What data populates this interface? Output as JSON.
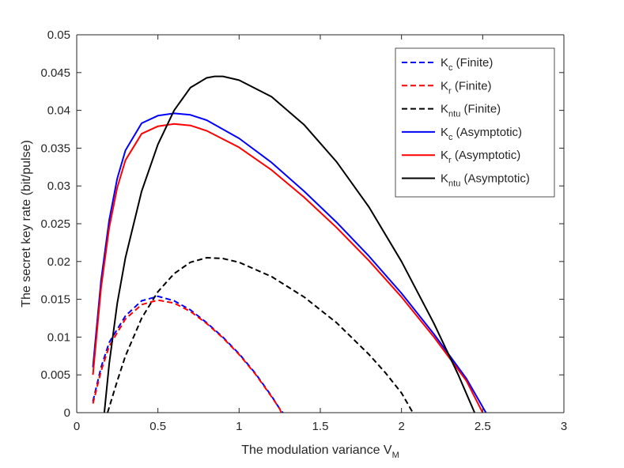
{
  "chart_data": {
    "type": "line",
    "title": "",
    "xlabel": "The modulation variance V",
    "xlabel_sub": "M",
    "ylabel": "The secret key rate (bit/pulse)",
    "xlim": [
      0,
      3
    ],
    "ylim": [
      0,
      0.05
    ],
    "xticks": [
      0,
      0.5,
      1,
      1.5,
      2,
      2.5,
      3
    ],
    "xtick_labels": [
      "0",
      "0.5",
      "1",
      "1.5",
      "2",
      "2.5",
      "3"
    ],
    "yticks": [
      0,
      0.005,
      0.01,
      0.015,
      0.02,
      0.025,
      0.03,
      0.035,
      0.04,
      0.045,
      0.05
    ],
    "ytick_labels": [
      "0",
      "0.005",
      "0.01",
      "0.015",
      "0.02",
      "0.025",
      "0.03",
      "0.035",
      "0.04",
      "0.045",
      "0.05"
    ],
    "grid": false,
    "legend_position": "top-right",
    "series": [
      {
        "name": "K",
        "sub": "c",
        "suffix": " (Finite)",
        "color": "#0000ff",
        "dashed": true,
        "points": [
          [
            0.1,
            0.0015
          ],
          [
            0.15,
            0.006
          ],
          [
            0.2,
            0.0093
          ],
          [
            0.3,
            0.0128
          ],
          [
            0.4,
            0.0148
          ],
          [
            0.5,
            0.0154
          ],
          [
            0.6,
            0.0148
          ],
          [
            0.7,
            0.0136
          ],
          [
            0.8,
            0.0119
          ],
          [
            0.9,
            0.01
          ],
          [
            1.0,
            0.0078
          ],
          [
            1.1,
            0.0052
          ],
          [
            1.2,
            0.0022
          ],
          [
            1.25,
            0.0005
          ],
          [
            1.27,
            0
          ]
        ]
      },
      {
        "name": "K",
        "sub": "r",
        "suffix": " (Finite)",
        "color": "#ff0000",
        "dashed": true,
        "points": [
          [
            0.1,
            0.0012
          ],
          [
            0.15,
            0.0055
          ],
          [
            0.2,
            0.0088
          ],
          [
            0.3,
            0.0124
          ],
          [
            0.4,
            0.0143
          ],
          [
            0.5,
            0.0149
          ],
          [
            0.6,
            0.0145
          ],
          [
            0.7,
            0.0134
          ],
          [
            0.8,
            0.0118
          ],
          [
            0.9,
            0.0099
          ],
          [
            1.0,
            0.0077
          ],
          [
            1.1,
            0.0051
          ],
          [
            1.2,
            0.0021
          ],
          [
            1.25,
            0.0005
          ],
          [
            1.26,
            0
          ]
        ]
      },
      {
        "name": "K",
        "sub": "ntu",
        "suffix": " (Finite)",
        "color": "#000000",
        "dashed": true,
        "points": [
          [
            0.19,
            0
          ],
          [
            0.25,
            0.0042
          ],
          [
            0.3,
            0.0075
          ],
          [
            0.4,
            0.0125
          ],
          [
            0.5,
            0.016
          ],
          [
            0.6,
            0.0184
          ],
          [
            0.7,
            0.0199
          ],
          [
            0.8,
            0.0205
          ],
          [
            0.9,
            0.0204
          ],
          [
            1.0,
            0.0199
          ],
          [
            1.2,
            0.018
          ],
          [
            1.4,
            0.0153
          ],
          [
            1.6,
            0.0119
          ],
          [
            1.8,
            0.0077
          ],
          [
            1.9,
            0.0053
          ],
          [
            2.0,
            0.0026
          ],
          [
            2.07,
            0
          ]
        ]
      },
      {
        "name": "K",
        "sub": "c",
        "suffix": " (Asymptotic)",
        "color": "#0000ff",
        "dashed": false,
        "points": [
          [
            0.1,
            0.006
          ],
          [
            0.15,
            0.0175
          ],
          [
            0.2,
            0.0255
          ],
          [
            0.25,
            0.031
          ],
          [
            0.3,
            0.0347
          ],
          [
            0.4,
            0.0383
          ],
          [
            0.5,
            0.0393
          ],
          [
            0.6,
            0.0396
          ],
          [
            0.7,
            0.0394
          ],
          [
            0.8,
            0.0387
          ],
          [
            1.0,
            0.0363
          ],
          [
            1.2,
            0.0331
          ],
          [
            1.4,
            0.0293
          ],
          [
            1.6,
            0.0252
          ],
          [
            1.8,
            0.0207
          ],
          [
            2.0,
            0.0158
          ],
          [
            2.2,
            0.0104
          ],
          [
            2.4,
            0.0045
          ],
          [
            2.52,
            0
          ]
        ]
      },
      {
        "name": "K",
        "sub": "r",
        "suffix": " (Asymptotic)",
        "color": "#ff0000",
        "dashed": false,
        "points": [
          [
            0.1,
            0.005
          ],
          [
            0.15,
            0.0165
          ],
          [
            0.2,
            0.0245
          ],
          [
            0.25,
            0.0298
          ],
          [
            0.3,
            0.0334
          ],
          [
            0.4,
            0.0369
          ],
          [
            0.5,
            0.0379
          ],
          [
            0.6,
            0.0382
          ],
          [
            0.7,
            0.038
          ],
          [
            0.8,
            0.0373
          ],
          [
            1.0,
            0.0351
          ],
          [
            1.2,
            0.0321
          ],
          [
            1.4,
            0.0285
          ],
          [
            1.6,
            0.0245
          ],
          [
            1.8,
            0.0201
          ],
          [
            2.0,
            0.0153
          ],
          [
            2.2,
            0.01
          ],
          [
            2.4,
            0.0042
          ],
          [
            2.5,
            0
          ]
        ]
      },
      {
        "name": "K",
        "sub": "ntu",
        "suffix": " (Asymptotic)",
        "color": "#000000",
        "dashed": false,
        "points": [
          [
            0.17,
            0
          ],
          [
            0.2,
            0.0065
          ],
          [
            0.25,
            0.0145
          ],
          [
            0.3,
            0.0205
          ],
          [
            0.4,
            0.0293
          ],
          [
            0.5,
            0.0355
          ],
          [
            0.6,
            0.04
          ],
          [
            0.7,
            0.043
          ],
          [
            0.8,
            0.0443
          ],
          [
            0.85,
            0.0445
          ],
          [
            0.9,
            0.0445
          ],
          [
            1.0,
            0.044
          ],
          [
            1.2,
            0.0418
          ],
          [
            1.4,
            0.0381
          ],
          [
            1.6,
            0.0332
          ],
          [
            1.8,
            0.0272
          ],
          [
            2.0,
            0.02
          ],
          [
            2.2,
            0.0118
          ],
          [
            2.35,
            0.005
          ],
          [
            2.45,
            0
          ]
        ]
      }
    ]
  }
}
